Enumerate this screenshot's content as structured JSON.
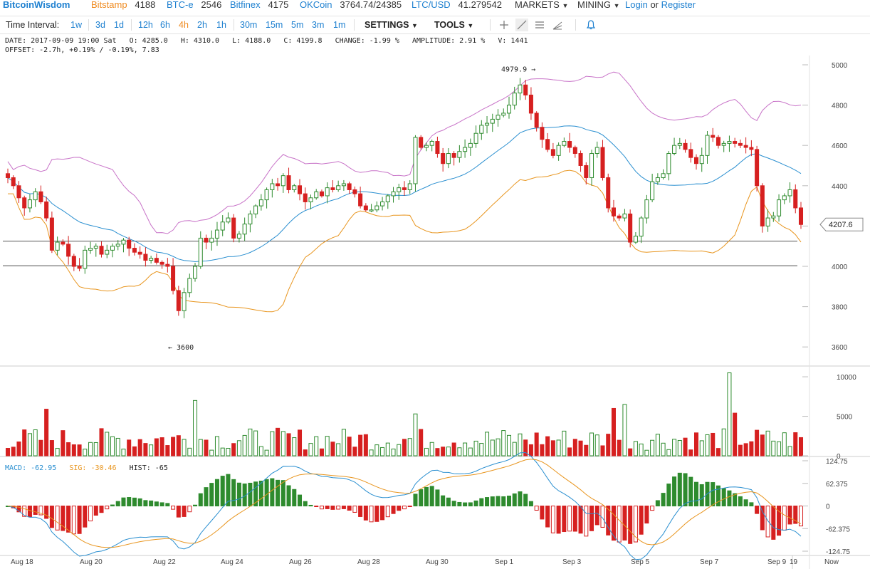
{
  "topbar": {
    "brand": "BitcoinWisdom",
    "exchanges": [
      {
        "name": "Bitstamp",
        "price": "4188",
        "color": "#ef8a1f"
      },
      {
        "name": "BTC-e",
        "price": "2546",
        "color": "#1e80d0"
      },
      {
        "name": "Bitfinex",
        "price": "4175",
        "color": "#1e80d0"
      },
      {
        "name": "OKCoin",
        "price": "3764.74/24385",
        "color": "#1e80d0"
      },
      {
        "name": "LTC/USD",
        "price": "41.279542",
        "color": "#1e80d0"
      }
    ],
    "markets": "MARKETS",
    "mining": "MINING",
    "login": "Login",
    "or": "or",
    "register": "Register"
  },
  "toolbar": {
    "time_interval_label": "Time Interval:",
    "intervals": [
      "1w",
      "3d",
      "1d",
      "12h",
      "6h",
      "4h",
      "2h",
      "1h",
      "30m",
      "15m",
      "5m",
      "3m",
      "1m"
    ],
    "active_interval": "4h",
    "settings": "SETTINGS",
    "tools": "TOOLS"
  },
  "info": {
    "line1": "DATE: 2017-09-09 19:00 Sat   O: 4285.0   H: 4310.0   L: 4188.0   C: 4199.8   CHANGE: -1.99 %   AMPLITUDE: 2.91 %   V: 1441",
    "line2": "OFFSET: -2.7h, +0.19% / -0.19%, 7.83"
  },
  "macd_info": {
    "macd_label": "MACD:",
    "macd_value": "-62.95",
    "sig_label": "SIG:",
    "sig_value": "-30.46",
    "hist_label": "HIST:",
    "hist_value": "-65"
  },
  "colors": {
    "up": "#2e8b2e",
    "down": "#d62020",
    "upper_band": "#c873c8",
    "mid_band": "#2a8fd0",
    "lower_band": "#e8951e",
    "macd": "#2a8fd0",
    "signal": "#e8951e",
    "accent": "#1e80d0"
  },
  "chart_data": [
    {
      "type": "candlestick",
      "panel": "price",
      "ylim": [
        3540,
        5060
      ],
      "yticks": [
        3600,
        3800,
        4000,
        4200,
        4400,
        4600,
        4800,
        5000
      ],
      "xticks": [
        "Aug 18",
        "Aug 20",
        "Aug 22",
        "Aug 24",
        "Aug 26",
        "Aug 28",
        "Aug 30",
        "Sep 1",
        "Sep 3",
        "Sep 5",
        "Sep 7",
        "Sep 9",
        "19",
        "Now"
      ],
      "horizontal_lines": [
        4125,
        4003
      ],
      "annotations": [
        {
          "text": "4979.9 →"
        },
        {
          "text": "← 3600"
        }
      ],
      "current_price_label": "4207.6",
      "candles_close": [
        4440,
        4400,
        4340,
        4290,
        4330,
        4370,
        4320,
        4240,
        4080,
        4120,
        4110,
        4050,
        4000,
        3990,
        4080,
        4090,
        4100,
        4060,
        4080,
        4100,
        4110,
        4130,
        4090,
        4070,
        4060,
        4030,
        4040,
        4020,
        4010,
        4000,
        3880,
        3780,
        3870,
        3940,
        4000,
        4140,
        4120,
        4140,
        4180,
        4220,
        4240,
        4140,
        4160,
        4210,
        4260,
        4300,
        4330,
        4380,
        4410,
        4400,
        4450,
        4380,
        4400,
        4360,
        4320,
        4340,
        4370,
        4350,
        4390,
        4380,
        4400,
        4410,
        4380,
        4360,
        4300,
        4280,
        4280,
        4300,
        4320,
        4350,
        4370,
        4390,
        4380,
        4410,
        4640,
        4590,
        4600,
        4620,
        4560,
        4510,
        4560,
        4540,
        4570,
        4590,
        4610,
        4660,
        4700,
        4710,
        4730,
        4750,
        4760,
        4800,
        4860,
        4900,
        4850,
        4760,
        4690,
        4630,
        4580,
        4550,
        4600,
        4620,
        4590,
        4560,
        4500,
        4440,
        4560,
        4590,
        4440,
        4290,
        4250,
        4240,
        4260,
        4120,
        4150,
        4240,
        4330,
        4420,
        4440,
        4460,
        4560,
        4600,
        4610,
        4580,
        4540,
        4510,
        4550,
        4650,
        4640,
        4600,
        4610,
        4620,
        4610,
        4600,
        4590,
        4580,
        4400,
        4200,
        4240,
        4250,
        4330,
        4350,
        4380,
        4290,
        4207.6
      ],
      "volume_ylim": [
        0,
        11000
      ],
      "volume_yticks": [
        0,
        5000,
        10000
      ],
      "macd_ylim": [
        -124.75,
        124.75
      ],
      "macd_yticks": [
        "124.75",
        "62.375",
        "0",
        "-62.375",
        "-124.75"
      ]
    }
  ]
}
